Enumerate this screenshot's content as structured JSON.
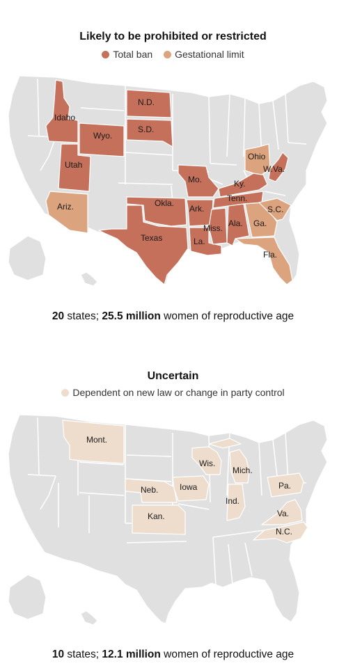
{
  "colors": {
    "total_ban": "#c4705a",
    "gestational_limit": "#dca37f",
    "uncertain": "#eeddcc",
    "other": "#e0e0e0",
    "border": "#ffffff"
  },
  "panel1": {
    "title": "Likely to be prohibited or restricted",
    "legend": [
      {
        "label": "Total ban",
        "color": "#c4705a"
      },
      {
        "label": "Gestational limit",
        "color": "#dca37f"
      }
    ],
    "state_labels": {
      "Idaho": "Idaho",
      "Wyo": "Wyo.",
      "Utah": "Utah",
      "Ariz": "Ariz.",
      "ND": "N.D.",
      "SD": "S.D.",
      "Okla": "Okla.",
      "Texas": "Texas",
      "Mo": "Mo.",
      "Ark": "Ark.",
      "La": "La.",
      "Miss": "Miss.",
      "Ala": "Ala.",
      "Tenn": "Tenn.",
      "Ky": "Ky.",
      "Ohio": "Ohio",
      "WVa": "W.Va.",
      "Ga": "Ga.",
      "SC": "S.C.",
      "Fla": "Fla."
    },
    "caption_count": "20",
    "caption_mid": " states; ",
    "caption_women": "25.5 million",
    "caption_end": " women of reproductive age"
  },
  "panel2": {
    "title": "Uncertain",
    "legend": [
      {
        "label": "Dependent on new law or change in party control",
        "color": "#eeddcc"
      }
    ],
    "state_labels": {
      "Mont": "Mont.",
      "Neb": "Neb.",
      "Kan": "Kan.",
      "Iowa": "Iowa",
      "Wis": "Wis.",
      "Mich": "Mich.",
      "Ind": "Ind.",
      "Pa": "Pa.",
      "Va": "Va.",
      "NC": "N.C."
    },
    "caption_count": "10",
    "caption_mid": " states; ",
    "caption_women": "12.1 million",
    "caption_end": " women of reproductive age"
  }
}
